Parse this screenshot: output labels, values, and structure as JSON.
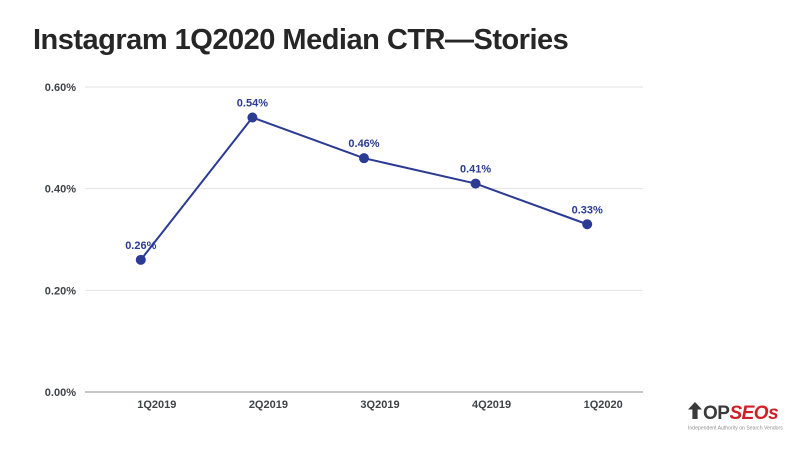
{
  "header": {
    "title": "Instagram 1Q2020 Median CTR—Stories"
  },
  "chart_data": {
    "type": "line",
    "title": "Instagram 1Q2020 Median CTR—Stories",
    "categories": [
      "1Q2019",
      "2Q2019",
      "3Q2019",
      "4Q2019",
      "1Q2020"
    ],
    "values": [
      0.26,
      0.54,
      0.46,
      0.41,
      0.33
    ],
    "point_labels": [
      "0.26%",
      "0.54%",
      "0.46%",
      "0.41%",
      "0.33%"
    ],
    "unit": "%",
    "xlabel": "",
    "ylabel": "",
    "ylim": [
      0,
      0.6
    ],
    "y_ticks": [
      0,
      0.2,
      0.4,
      0.6
    ],
    "y_tick_labels": [
      "0.00%",
      "0.20%",
      "0.40%",
      "0.60%"
    ],
    "grid": true,
    "legend": "none"
  },
  "colors": {
    "line": "#2b3a92",
    "data_label": "#2b3a92",
    "axis_text": "#3f4347",
    "grid": "#e2e2e2",
    "axis_line": "#8f8f8f",
    "title": "#262626",
    "logo_red": "#d02027",
    "logo_dark": "#3a3a3a",
    "tagline": "#8f8f8f"
  },
  "logo": {
    "icon": "up-arrow-icon",
    "text_dark": "OP",
    "text_red": "SEOs",
    "tagline": "Independent Authority on Search Vendors"
  }
}
